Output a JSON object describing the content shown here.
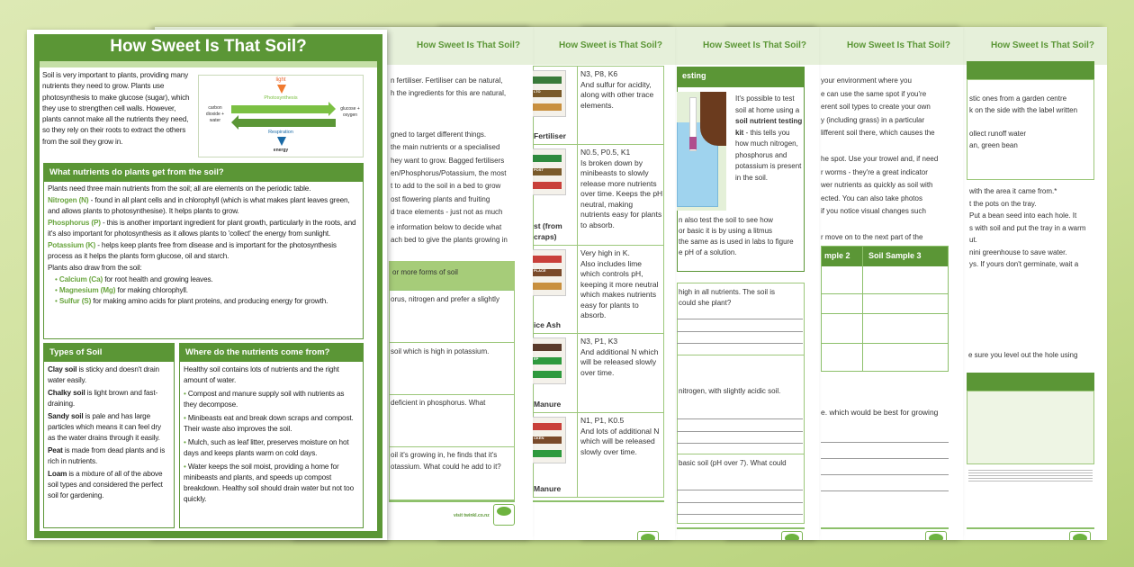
{
  "colors": {
    "accent": "#5b9636",
    "light": "#e6f0da",
    "highlight": "#6aa53f"
  },
  "header_title": "How Sweet Is That Soil?",
  "header_title_alt": "How Sweet is That Soil?",
  "footer_url": "visit twinkl.co.nz",
  "front": {
    "title": "How Sweet Is That Soil?",
    "intro": "Soil is very important to plants, providing many nutrients they need to grow. Plants use photosynthesis to make glucose (sugar), which they use to strengthen cell walls. However, plants cannot make all the nutrients they need, so they rely on their roots to extract the others from the soil they grow in.",
    "diagram": {
      "light": "light",
      "photosynthesis": "Photosynthesis",
      "left": "carbon dioxide + water",
      "right": "glucose + oxygen",
      "respiration": "Respiration",
      "energy": "energy"
    },
    "nutrients": {
      "heading": "What nutrients do plants get from the soil?",
      "p1": "Plants need three main nutrients from the soil; all are elements on the periodic table.",
      "n_term": "Nitrogen (N)",
      "n_text": " - found in all plant cells and in chlorophyll (which is what makes plant leaves green, and allows plants to photosynthesise). It helps plants to grow.",
      "p_term": "Phosphorus (P)",
      "p_text": " - this is another important ingredient for plant growth, particularly in the roots, and it's also important for photosynthesis as it allows plants to 'collect' the energy from sunlight.",
      "k_term": "Potassium (K)",
      "k_text": " - helps keep plants free from disease and is important for the photosynthesis process as it helps the plants form glucose, oil and starch.",
      "also": "Plants also draw from the soil:",
      "extras": [
        {
          "term": "Calcium (Ca)",
          "text": " for root health and growing leaves."
        },
        {
          "term": "Magnesium (Mg)",
          "text": " for making chlorophyll."
        },
        {
          "term": "Sulfur (S)",
          "text": " for making amino acids for plant proteins, and producing energy for growth."
        }
      ]
    },
    "types": {
      "heading": "Types of Soil",
      "items": [
        {
          "term": "Clay soil",
          "text": " is sticky and doesn't drain water easily."
        },
        {
          "term": "Chalky soil",
          "text": " is light brown and fast-draining."
        },
        {
          "term": "Sandy soil",
          "text": " is pale and has large particles which means it can feel dry as the water drains through it easily."
        },
        {
          "term": "Peat",
          "text": " is made from dead plants and is rich in nutrients."
        },
        {
          "term": "Loam",
          "text": " is a mixture of all of the above soil types and considered the perfect soil for gardening."
        }
      ]
    },
    "where": {
      "heading": "Where do the nutrients come from?",
      "intro": "Healthy soil contains lots of nutrients and the right amount of water.",
      "items": [
        "Compost and manure supply soil with nutrients as they decompose.",
        "Minibeasts eat and break down scraps and compost. Their waste also improves the soil.",
        "Mulch, such as leaf litter, preserves moisture on hot days and keeps plants warm on cold days.",
        "Water keeps the soil moist, providing a home for minibeasts and plants, and speeds up compost breakdown. Healthy soil should drain water but not too quickly."
      ]
    }
  },
  "page2": {
    "lines_top": [
      "n fertiliser. Fertiliser can be natural,",
      "h the ingredients for this are natural,"
    ],
    "lines_mid": [
      "gned to target different things.",
      "the main nutrients or a specialised",
      "hey want to grow. Bagged fertilisers",
      "en/Phosphorus/Potassium, the most",
      "t to add to the soil in a bed to grow",
      "ost flowering plants and fruiting",
      "d trace elements - just not as much"
    ],
    "lines_low": [
      "e information below to decide what",
      "ach bed to give the plants growing in"
    ],
    "band": "or more forms of soil",
    "questions": [
      "orus, nitrogen and prefer a slightly",
      "soil which is high in potassium.",
      "deficient in phosphorus. What",
      "oil it's growing in, he finds that it's",
      "otassium. What could he add to it?"
    ]
  },
  "page3": {
    "rows": [
      {
        "label": "Fertiliser",
        "bag": "LTO",
        "text": "N3, P8, K6\nAnd sulfur for acidity, along with other trace elements."
      },
      {
        "label": "st (from\ncraps)",
        "bag": "POST",
        "text": "N0.5, P0.5, K1\nIs broken down by minibeasts to slowly release more nutrients over time. Keeps the pH neutral, making nutrients easy for plants to absorb."
      },
      {
        "label": "ice Ash",
        "bag": "PLACE",
        "text": "Very high in K.\nAlso includes lime which controls pH, keeping it more neutral which makes nutrients easy for plants to absorb."
      },
      {
        "label": "Manure",
        "bag": "EP",
        "text": "N3, P1, K3\nAnd additional N which will be released slowly over time."
      },
      {
        "label": "Manure",
        "bag": "CKEN",
        "text": "N1, P1, K0.5\nAnd lots of additional N which will be released slowly over time."
      }
    ]
  },
  "page4": {
    "band": "esting",
    "kit_pre": "It's possible to test soil at home using a ",
    "kit_bold": "soil nutrient testing kit",
    "kit_post": " - this tells you how much nitrogen, phosphorus and potassium is present in the soil.",
    "litmus": [
      "n also test the soil to see how",
      "or basic it is by using a litmus",
      "the same as is used in labs to figure",
      "e pH of a solution."
    ],
    "questions": [
      "high in all nutrients. The soil is",
      "could she plant?",
      "nitrogen, with slightly acidic soil.",
      "basic soil (pH over 7). What could"
    ]
  },
  "page5": {
    "lines": [
      "your environment where you",
      "e can use the same spot if you're",
      "erent soil types to create your own",
      "y (including grass) in a particular",
      "lifferent soil there, which causes the",
      "",
      "he spot. Use your trowel and, if need",
      "r worms - they're a great indicator",
      "wer nutrients as quickly as soil with",
      "ected. You can also take photos",
      "if you notice visual changes such",
      "",
      "r move on to the next part of the"
    ],
    "table_headers": [
      "mple 2",
      "Soil Sample 3"
    ],
    "question": "e. which would be best for growing"
  },
  "page6": {
    "lines_box": [
      "stic ones from a garden centre",
      "k on the side with the label written",
      "",
      "ollect runoff water",
      "an, green bean"
    ],
    "lines_steps": [
      "with the area it came from.*",
      "t the pots on the tray.",
      "Put a bean seed into each hole. It",
      "s with soil and put the tray in a warm",
      "ut.",
      "nini greenhouse to save water.",
      "ys. If yours don't germinate, wait a"
    ],
    "level": "e sure you level out the hole using",
    "result_lines": [
      "g root system within a few weeks",
      "st like this to check how healthy the",
      "w twisted and strange-looking leaves,",
      "",
      "happens, it's probably an unhealthy",
      "althy soil."
    ]
  }
}
